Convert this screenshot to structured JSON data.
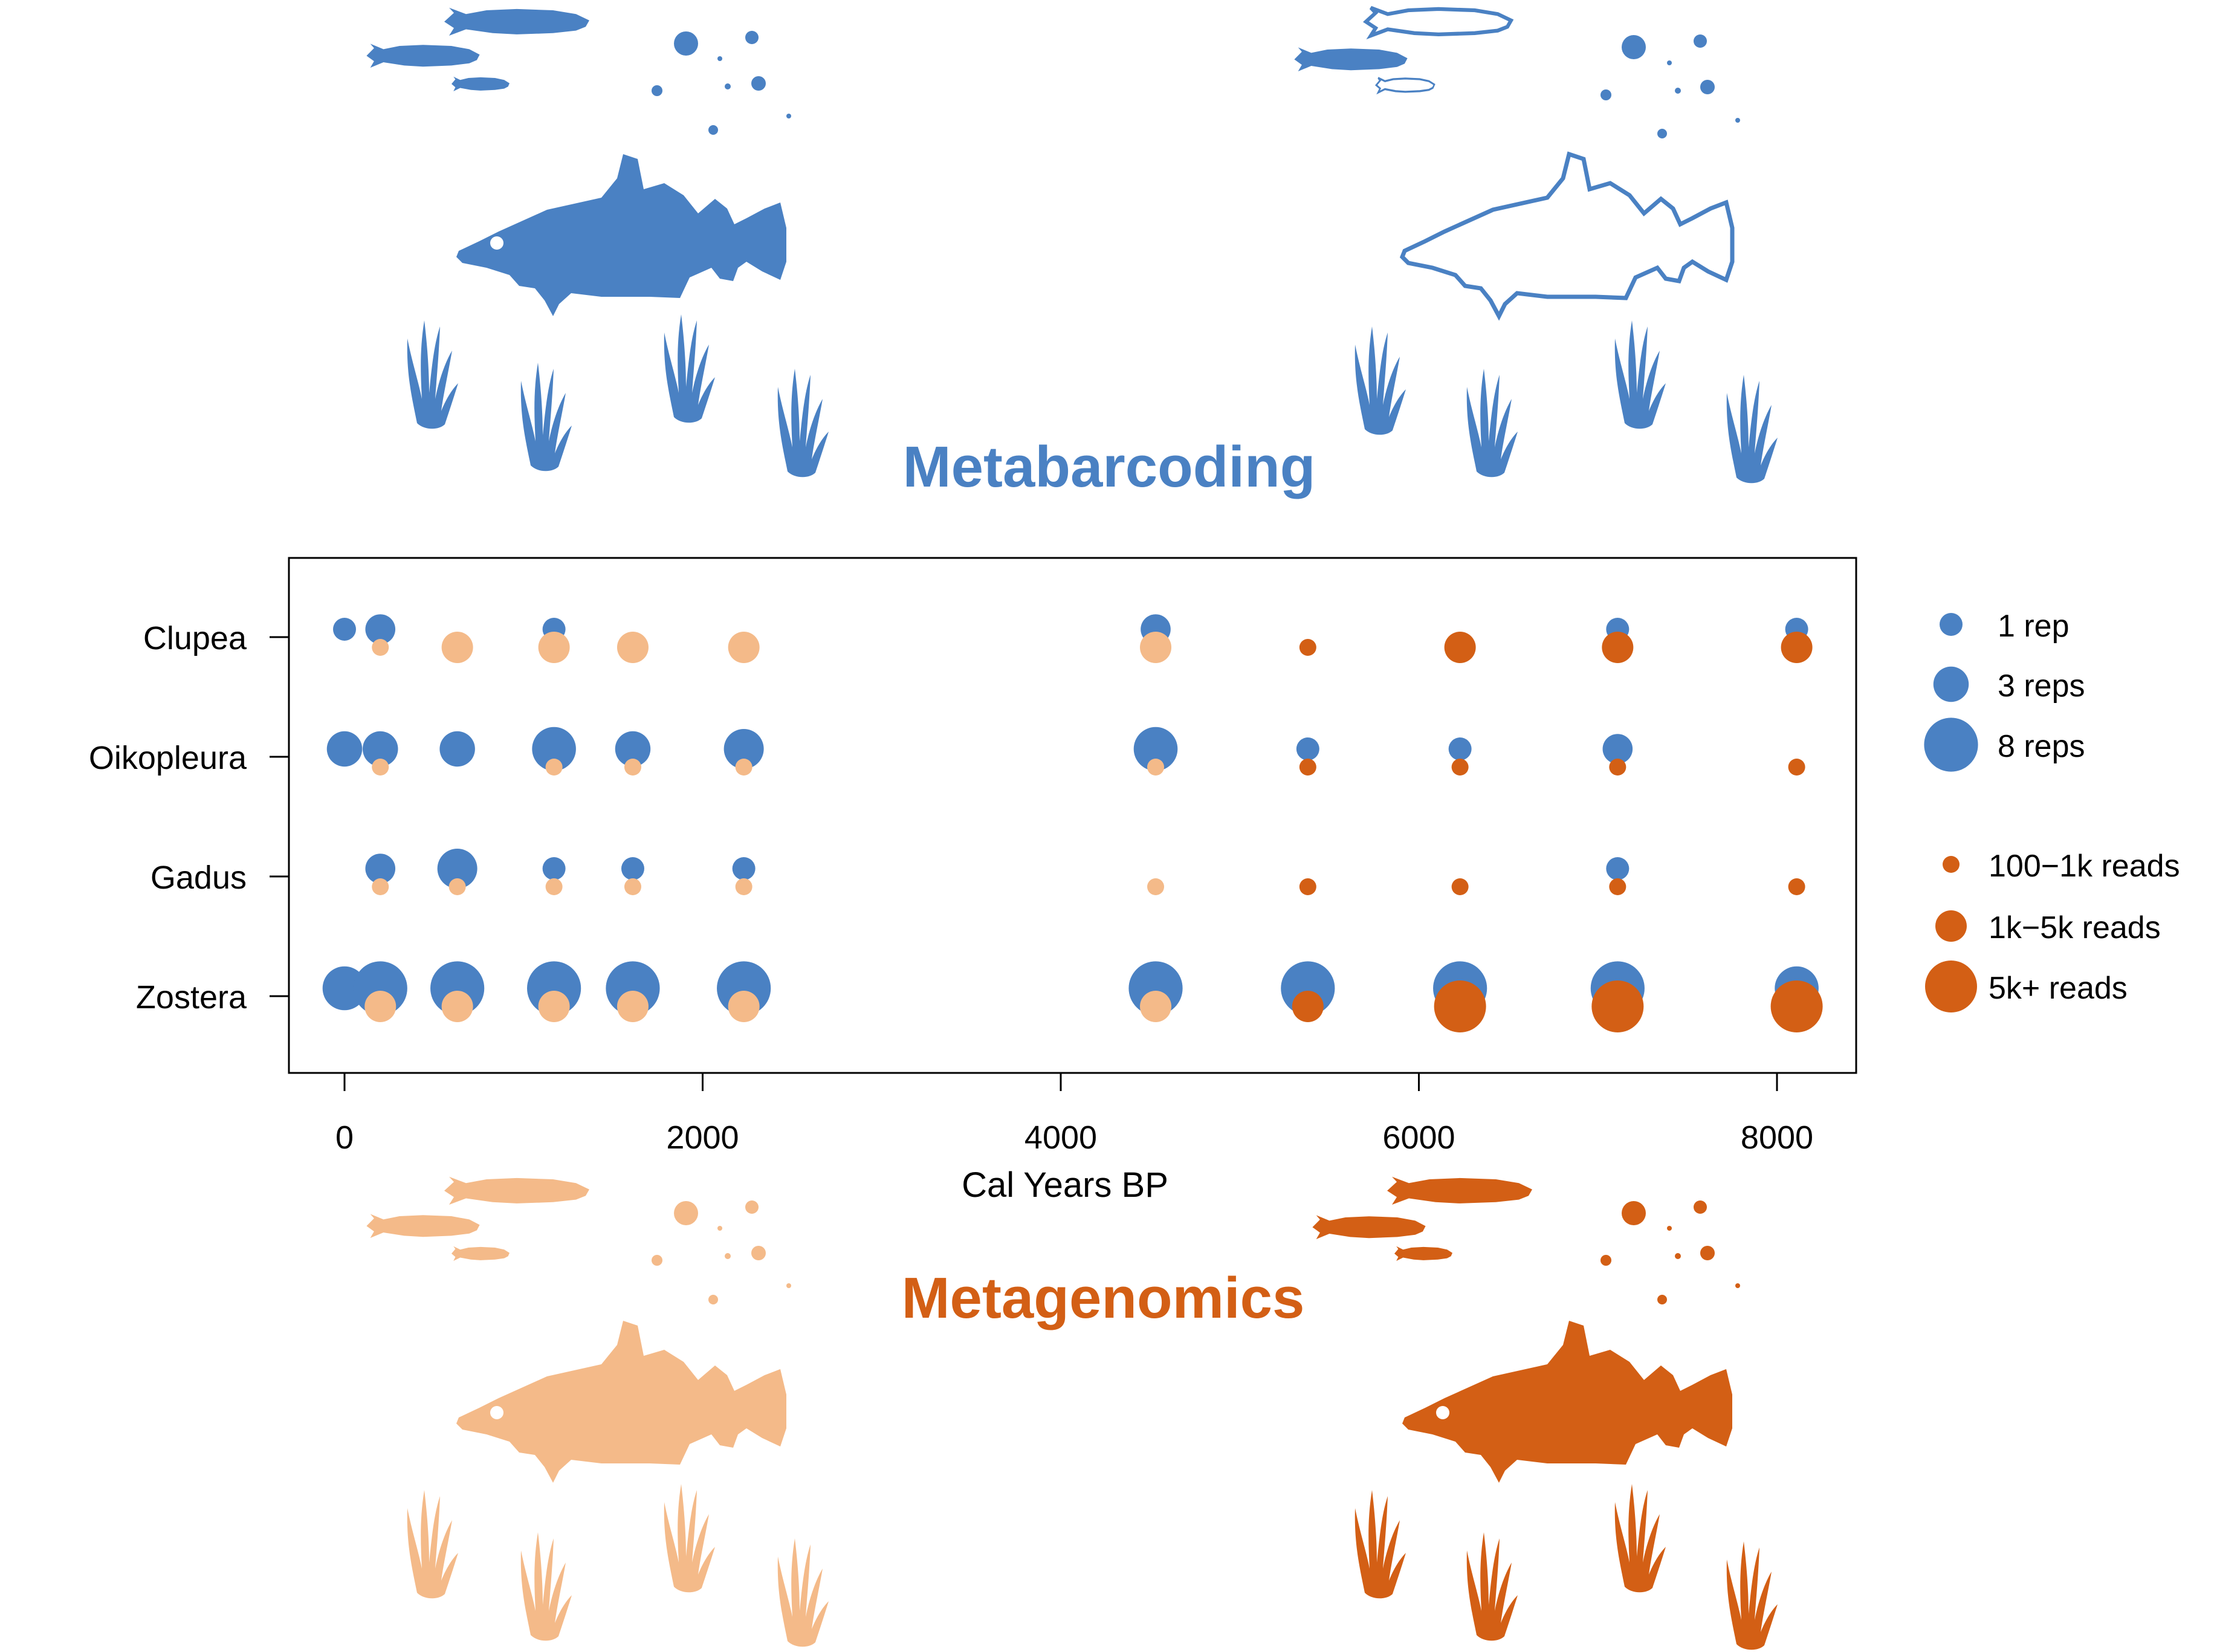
{
  "colors": {
    "metabarcoding": "#4a81c3",
    "metagenomics_light": "#f4ba89",
    "metagenomics_dark": "#d35f15",
    "axis": "#000000"
  },
  "headings": {
    "metabarcoding": "Metabarcoding",
    "metagenomics": "Metagenomics"
  },
  "icons": [
    "cod-fish-icon",
    "herring-fish-icon",
    "plankton-dots-icon",
    "eelgrass-icon"
  ],
  "legend": {
    "reps": [
      {
        "label": "1 rep",
        "reps": 1
      },
      {
        "label": "3 reps",
        "reps": 3
      },
      {
        "label": "8 reps",
        "reps": 8
      }
    ],
    "reads": [
      {
        "label": "100−1k reads",
        "level": 1
      },
      {
        "label": "1k−5k reads",
        "level": 2
      },
      {
        "label": "5k+ reads",
        "level": 3
      }
    ]
  },
  "chart_data": {
    "type": "scatter",
    "xlabel": "Cal Years BP",
    "ylabel": "",
    "xlim": [
      -150,
      8200
    ],
    "xticks": [
      0,
      2000,
      4000,
      6000,
      8000
    ],
    "categories": [
      "Clupea",
      "Oikopleura",
      "Gadus",
      "Zostera"
    ],
    "reads_shade_threshold_years": 5000,
    "series": [
      {
        "name": "Metabarcoding (reps)",
        "points": [
          {
            "taxon": "Clupea",
            "x": 0,
            "reps": 1
          },
          {
            "taxon": "Clupea",
            "x": 200,
            "reps": 2
          },
          {
            "taxon": "Clupea",
            "x": 1170,
            "reps": 1
          },
          {
            "taxon": "Clupea",
            "x": 4530,
            "reps": 2
          },
          {
            "taxon": "Clupea",
            "x": 7110,
            "reps": 1
          },
          {
            "taxon": "Clupea",
            "x": 8110,
            "reps": 1
          },
          {
            "taxon": "Oikopleura",
            "x": 0,
            "reps": 3
          },
          {
            "taxon": "Oikopleura",
            "x": 200,
            "reps": 3
          },
          {
            "taxon": "Oikopleura",
            "x": 630,
            "reps": 3
          },
          {
            "taxon": "Oikopleura",
            "x": 1170,
            "reps": 5
          },
          {
            "taxon": "Oikopleura",
            "x": 1610,
            "reps": 3
          },
          {
            "taxon": "Oikopleura",
            "x": 2230,
            "reps": 4
          },
          {
            "taxon": "Oikopleura",
            "x": 4530,
            "reps": 5
          },
          {
            "taxon": "Oikopleura",
            "x": 5380,
            "reps": 1
          },
          {
            "taxon": "Oikopleura",
            "x": 6230,
            "reps": 1
          },
          {
            "taxon": "Oikopleura",
            "x": 7110,
            "reps": 2
          },
          {
            "taxon": "Gadus",
            "x": 200,
            "reps": 2
          },
          {
            "taxon": "Gadus",
            "x": 630,
            "reps": 4
          },
          {
            "taxon": "Gadus",
            "x": 1170,
            "reps": 1
          },
          {
            "taxon": "Gadus",
            "x": 1610,
            "reps": 1
          },
          {
            "taxon": "Gadus",
            "x": 2230,
            "reps": 1
          },
          {
            "taxon": "Gadus",
            "x": 7110,
            "reps": 1
          },
          {
            "taxon": "Zostera",
            "x": 0,
            "reps": 5
          },
          {
            "taxon": "Zostera",
            "x": 200,
            "reps": 8
          },
          {
            "taxon": "Zostera",
            "x": 630,
            "reps": 8
          },
          {
            "taxon": "Zostera",
            "x": 1170,
            "reps": 8
          },
          {
            "taxon": "Zostera",
            "x": 1610,
            "reps": 8
          },
          {
            "taxon": "Zostera",
            "x": 2230,
            "reps": 8
          },
          {
            "taxon": "Zostera",
            "x": 4530,
            "reps": 8
          },
          {
            "taxon": "Zostera",
            "x": 5380,
            "reps": 8
          },
          {
            "taxon": "Zostera",
            "x": 6230,
            "reps": 8
          },
          {
            "taxon": "Zostera",
            "x": 7110,
            "reps": 8
          },
          {
            "taxon": "Zostera",
            "x": 8110,
            "reps": 5
          }
        ]
      },
      {
        "name": "Metagenomics (reads)",
        "points": [
          {
            "taxon": "Clupea",
            "x": 200,
            "reads": 1
          },
          {
            "taxon": "Clupea",
            "x": 630,
            "reads": 2
          },
          {
            "taxon": "Clupea",
            "x": 1170,
            "reads": 2
          },
          {
            "taxon": "Clupea",
            "x": 1610,
            "reads": 2
          },
          {
            "taxon": "Clupea",
            "x": 2230,
            "reads": 2
          },
          {
            "taxon": "Clupea",
            "x": 4530,
            "reads": 2
          },
          {
            "taxon": "Clupea",
            "x": 5380,
            "reads": 1
          },
          {
            "taxon": "Clupea",
            "x": 6230,
            "reads": 2
          },
          {
            "taxon": "Clupea",
            "x": 7110,
            "reads": 2
          },
          {
            "taxon": "Clupea",
            "x": 8110,
            "reads": 2
          },
          {
            "taxon": "Oikopleura",
            "x": 200,
            "reads": 1
          },
          {
            "taxon": "Oikopleura",
            "x": 1170,
            "reads": 1
          },
          {
            "taxon": "Oikopleura",
            "x": 1610,
            "reads": 1
          },
          {
            "taxon": "Oikopleura",
            "x": 2230,
            "reads": 1
          },
          {
            "taxon": "Oikopleura",
            "x": 4530,
            "reads": 1
          },
          {
            "taxon": "Oikopleura",
            "x": 5380,
            "reads": 1
          },
          {
            "taxon": "Oikopleura",
            "x": 6230,
            "reads": 1
          },
          {
            "taxon": "Oikopleura",
            "x": 7110,
            "reads": 1
          },
          {
            "taxon": "Oikopleura",
            "x": 8110,
            "reads": 1
          },
          {
            "taxon": "Gadus",
            "x": 200,
            "reads": 1
          },
          {
            "taxon": "Gadus",
            "x": 630,
            "reads": 1
          },
          {
            "taxon": "Gadus",
            "x": 1170,
            "reads": 1
          },
          {
            "taxon": "Gadus",
            "x": 1610,
            "reads": 1
          },
          {
            "taxon": "Gadus",
            "x": 2230,
            "reads": 1
          },
          {
            "taxon": "Gadus",
            "x": 4530,
            "reads": 1
          },
          {
            "taxon": "Gadus",
            "x": 5380,
            "reads": 1
          },
          {
            "taxon": "Gadus",
            "x": 6230,
            "reads": 1
          },
          {
            "taxon": "Gadus",
            "x": 7110,
            "reads": 1
          },
          {
            "taxon": "Gadus",
            "x": 8110,
            "reads": 1
          },
          {
            "taxon": "Zostera",
            "x": 200,
            "reads": 2
          },
          {
            "taxon": "Zostera",
            "x": 630,
            "reads": 2
          },
          {
            "taxon": "Zostera",
            "x": 1170,
            "reads": 2
          },
          {
            "taxon": "Zostera",
            "x": 1610,
            "reads": 2
          },
          {
            "taxon": "Zostera",
            "x": 2230,
            "reads": 2
          },
          {
            "taxon": "Zostera",
            "x": 4530,
            "reads": 2
          },
          {
            "taxon": "Zostera",
            "x": 5380,
            "reads": 2
          },
          {
            "taxon": "Zostera",
            "x": 6230,
            "reads": 3
          },
          {
            "taxon": "Zostera",
            "x": 7110,
            "reads": 3
          },
          {
            "taxon": "Zostera",
            "x": 8110,
            "reads": 3
          }
        ]
      }
    ],
    "legend_position": "right",
    "grid": false
  }
}
